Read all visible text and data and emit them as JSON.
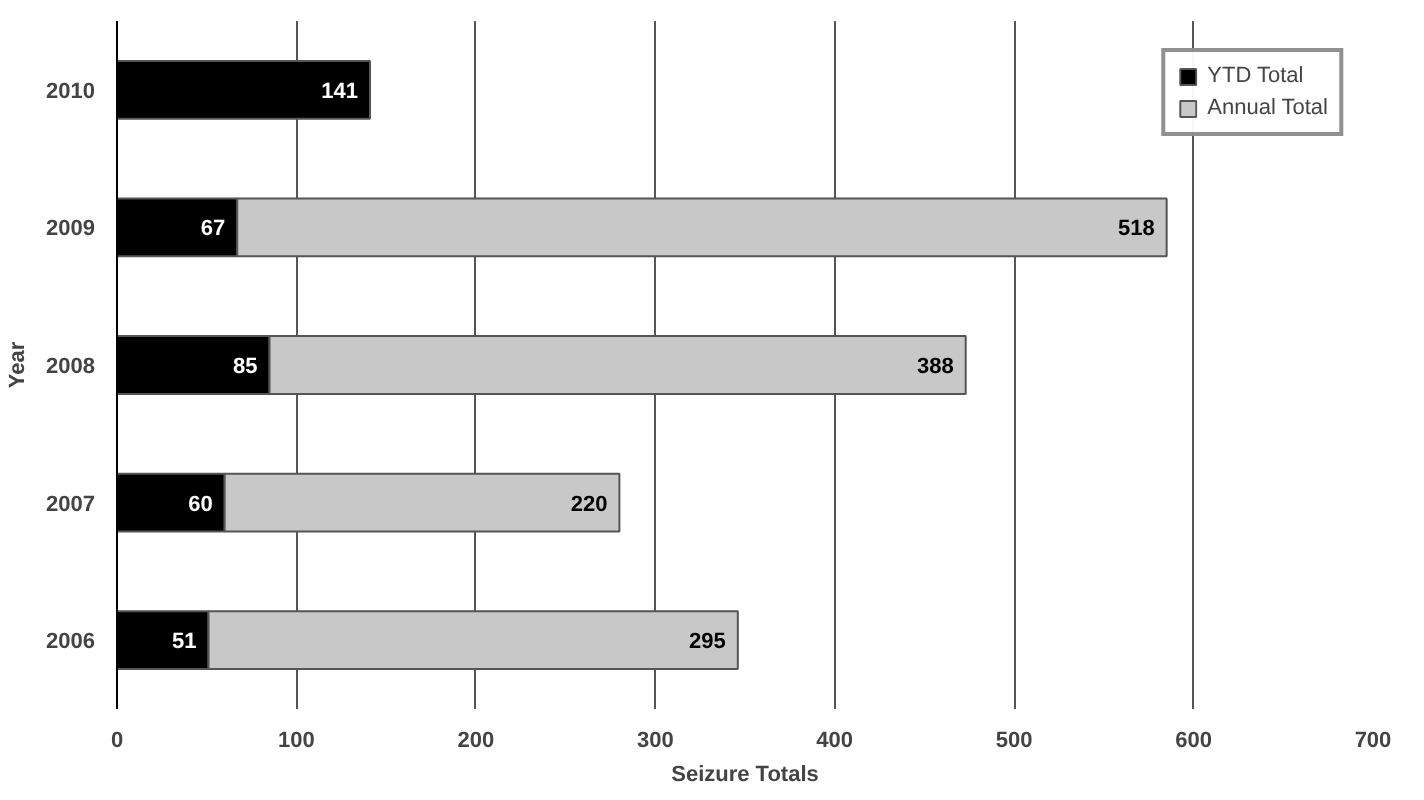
{
  "chart_data": {
    "type": "bar",
    "orientation": "horizontal",
    "stacked": true,
    "xlabel": "Seizure Totals",
    "ylabel": "Year",
    "categories": [
      "2010",
      "2009",
      "2008",
      "2007",
      "2006"
    ],
    "series": [
      {
        "name": "YTD Total",
        "color": "#000000",
        "values": [
          141,
          67,
          85,
          60,
          51
        ]
      },
      {
        "name": "Annual Total",
        "color": "#c8c8c8",
        "values": [
          null,
          518,
          388,
          220,
          295
        ]
      }
    ],
    "xlim": [
      0,
      700
    ],
    "xticks": [
      0,
      100,
      200,
      300,
      400,
      500,
      600,
      700
    ],
    "grid": "x",
    "legend": "top right",
    "data_labels": true
  }
}
